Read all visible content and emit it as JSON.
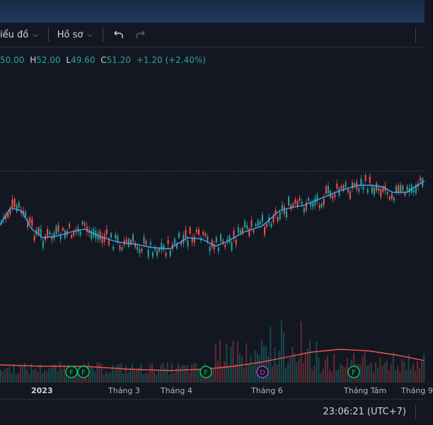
{
  "toolbar": {
    "chart_menu_label": "iểu đồ",
    "profile_label": "Hồ sơ",
    "undo_icon": "undo-icon",
    "redo_icon": "redo-icon",
    "dropdown_icon": "chevron-down-icon"
  },
  "ohlc": {
    "open_value": "50.00",
    "high_label": "H",
    "high_value": "52.00",
    "low_label": "L",
    "low_value": "49.60",
    "close_label": "C",
    "close_value": "51.20",
    "change": "+1.20 (+2.40%)"
  },
  "colors": {
    "up": "#26a69a",
    "down": "#ef5350",
    "ma": "#42a5f5",
    "volume_ma": "#ef5350",
    "background": "#131722"
  },
  "x_axis": {
    "labels": [
      "2023",
      "Tháng 3",
      "Tháng 4",
      "Tháng 6",
      "Tháng Tám",
      "Tháng 9"
    ]
  },
  "events": [
    {
      "letter": "F",
      "color": "#00c853"
    },
    {
      "letter": "F",
      "color": "#00c853"
    },
    {
      "letter": "F",
      "color": "#00c853"
    },
    {
      "letter": "D",
      "color": "#ab47bc"
    },
    {
      "letter": "F",
      "color": "#00c853"
    }
  ],
  "status_bar": {
    "clock": "23:06:21 (UTC+7)"
  }
}
